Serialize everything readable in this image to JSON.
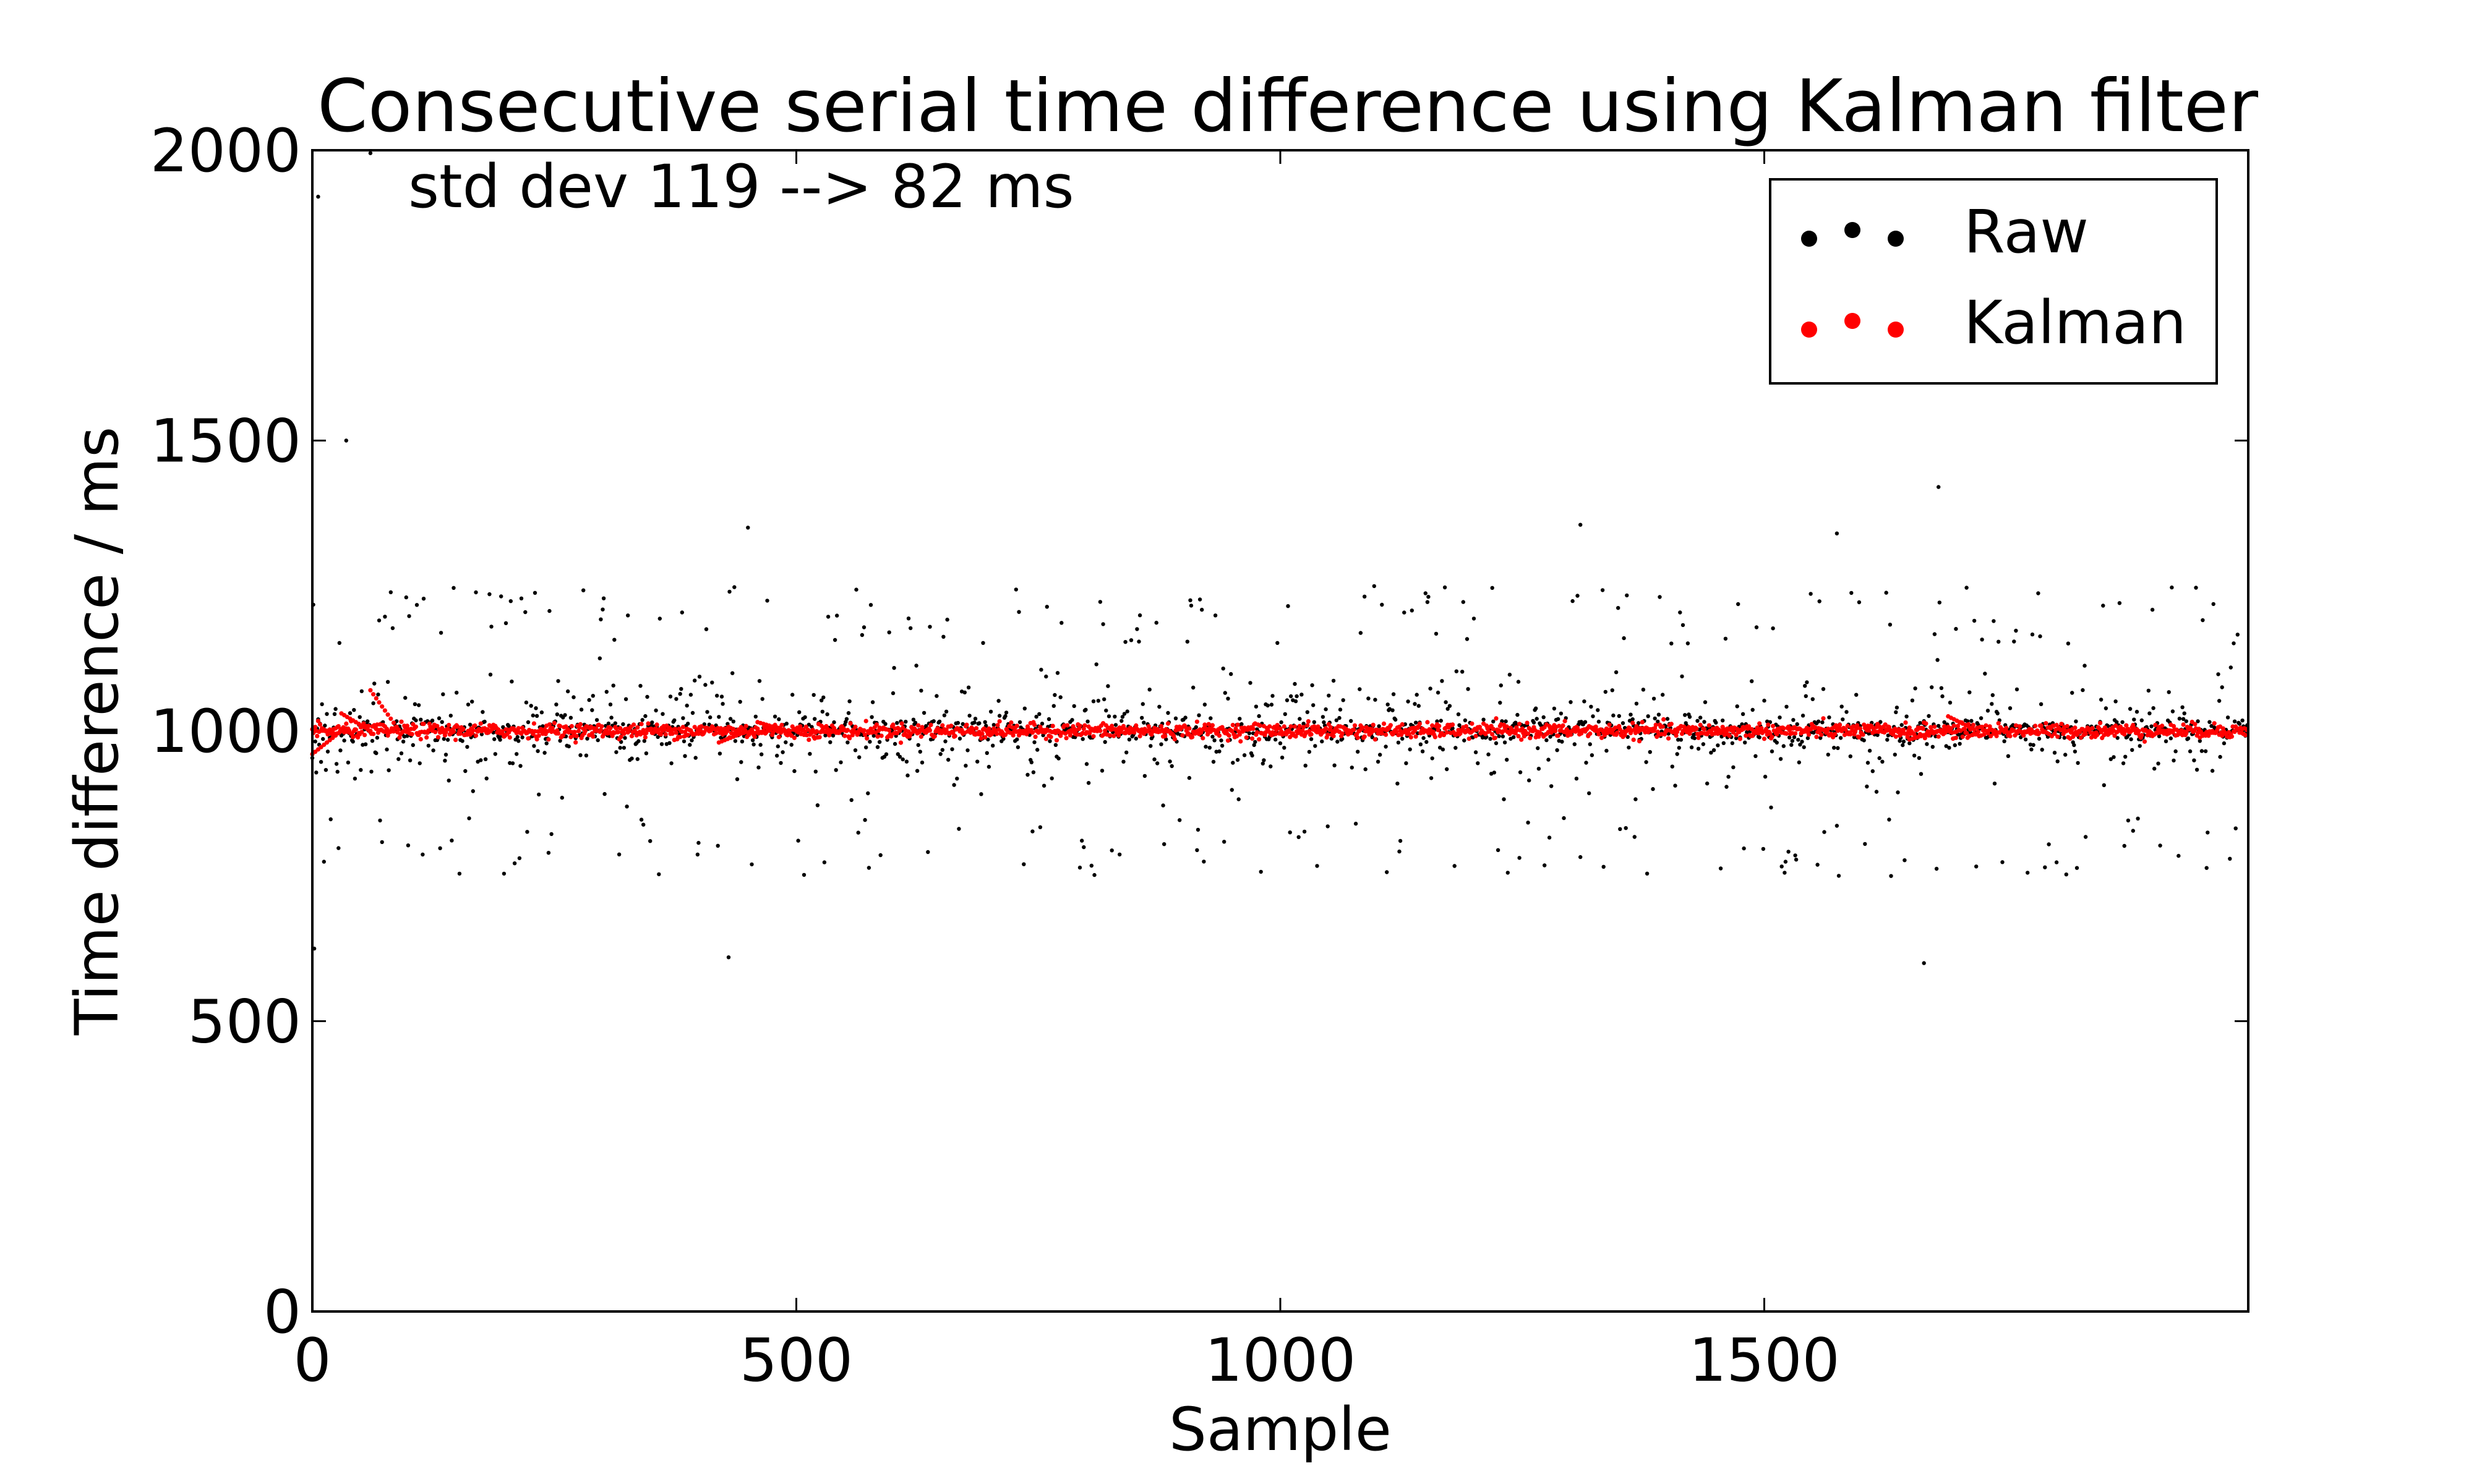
{
  "chart_data": {
    "type": "scatter",
    "title": "Consecutive serial time difference using Kalman filter",
    "xlabel": "Sample",
    "ylabel": "Time difference / ms",
    "xlim": [
      0,
      2000
    ],
    "ylim": [
      0,
      2000
    ],
    "xticks": [
      0,
      500,
      1000,
      1500
    ],
    "yticks": [
      0,
      500,
      1000,
      1500,
      2000
    ],
    "grid": false,
    "legend_position": "top-right",
    "annotation": "std dev 119 --> 82 ms",
    "n_samples": 2000,
    "series": [
      {
        "name": "Raw",
        "color": "#000000",
        "center": 1000,
        "std_dev": 119,
        "outliers": [
          [
            2,
            625
          ],
          [
            6,
            1920
          ],
          [
            60,
            1995
          ],
          [
            35,
            1500
          ],
          [
            430,
            610
          ],
          [
            450,
            1350
          ],
          [
            1310,
            1355
          ],
          [
            1575,
            1340
          ],
          [
            1665,
            600
          ],
          [
            1680,
            1420
          ]
        ]
      },
      {
        "name": "Kalman",
        "color": "#ff0000",
        "center": 1000,
        "std_dev": 82,
        "transients": [
          [
            0,
            960
          ],
          [
            30,
            1030
          ],
          [
            60,
            1070
          ],
          [
            420,
            980
          ],
          [
            460,
            1015
          ],
          [
            1650,
            985
          ],
          [
            1690,
            1025
          ]
        ]
      }
    ]
  }
}
